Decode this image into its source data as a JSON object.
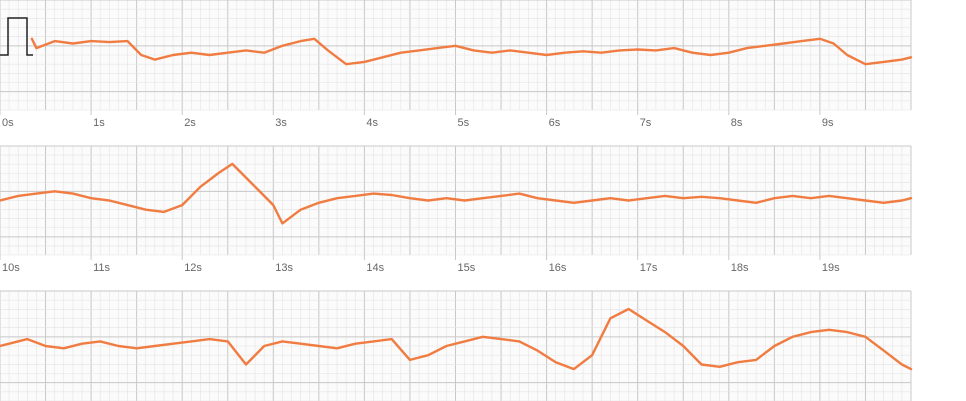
{
  "colors": {
    "trace": "#f07c42",
    "grid_minor": "#e4e4e4",
    "grid_major": "#c8c8c8",
    "axis_band": "#f7f7f7",
    "calibration": "#222222",
    "tick_text": "#666666"
  },
  "chart_data": {
    "type": "line",
    "title": "",
    "xlabel": "",
    "ylabel": "",
    "grid": true,
    "seconds_per_strip": 10,
    "strips": [
      {
        "start_s": 0,
        "end_s": 10,
        "tick_labels": [
          "0s",
          "1s",
          "2s",
          "3s",
          "4s",
          "5s",
          "6s",
          "7s",
          "8s",
          "9s"
        ],
        "calibration_pulse": true,
        "x": [
          0.35,
          0.4,
          0.6,
          0.8,
          1.0,
          1.2,
          1.4,
          1.55,
          1.7,
          1.9,
          2.1,
          2.3,
          2.5,
          2.7,
          2.9,
          3.1,
          3.3,
          3.45,
          3.6,
          3.8,
          4.0,
          4.2,
          4.4,
          4.6,
          4.8,
          5.0,
          5.2,
          5.4,
          5.6,
          5.8,
          6.0,
          6.2,
          6.4,
          6.6,
          6.8,
          7.0,
          7.2,
          7.4,
          7.6,
          7.8,
          8.0,
          8.2,
          8.4,
          8.6,
          8.8,
          9.0,
          9.15,
          9.3,
          9.5,
          9.7,
          9.9,
          10.0
        ],
        "y": [
          0.35,
          0.15,
          0.3,
          0.25,
          0.3,
          0.28,
          0.3,
          0.0,
          -0.1,
          0.0,
          0.05,
          0.0,
          0.05,
          0.1,
          0.05,
          0.2,
          0.3,
          0.35,
          0.1,
          -0.2,
          -0.15,
          -0.05,
          0.05,
          0.1,
          0.15,
          0.2,
          0.1,
          0.05,
          0.1,
          0.05,
          0.0,
          0.05,
          0.08,
          0.05,
          0.1,
          0.12,
          0.1,
          0.15,
          0.05,
          0.0,
          0.05,
          0.15,
          0.2,
          0.25,
          0.3,
          0.35,
          0.25,
          0.0,
          -0.2,
          -0.15,
          -0.1,
          -0.05
        ]
      },
      {
        "start_s": 10,
        "end_s": 20,
        "tick_labels": [
          "10s",
          "11s",
          "12s",
          "13s",
          "14s",
          "15s",
          "16s",
          "17s",
          "18s",
          "19s"
        ],
        "calibration_pulse": false,
        "x": [
          10.0,
          10.2,
          10.4,
          10.6,
          10.8,
          11.0,
          11.2,
          11.4,
          11.6,
          11.8,
          12.0,
          12.2,
          12.4,
          12.55,
          12.7,
          12.9,
          13.0,
          13.1,
          13.3,
          13.5,
          13.7,
          13.9,
          14.1,
          14.3,
          14.5,
          14.7,
          14.9,
          15.1,
          15.3,
          15.5,
          15.7,
          15.9,
          16.1,
          16.3,
          16.5,
          16.7,
          16.9,
          17.1,
          17.3,
          17.5,
          17.7,
          17.9,
          18.1,
          18.3,
          18.5,
          18.7,
          18.9,
          19.1,
          19.3,
          19.5,
          19.7,
          19.9,
          20.0
        ],
        "y": [
          0.0,
          0.1,
          0.15,
          0.2,
          0.15,
          0.05,
          0.0,
          -0.1,
          -0.2,
          -0.25,
          -0.1,
          0.3,
          0.6,
          0.8,
          0.5,
          0.1,
          -0.1,
          -0.5,
          -0.2,
          -0.05,
          0.05,
          0.1,
          0.15,
          0.12,
          0.05,
          0.0,
          0.05,
          0.0,
          0.05,
          0.1,
          0.15,
          0.05,
          0.0,
          -0.05,
          0.0,
          0.05,
          0.0,
          0.05,
          0.1,
          0.05,
          0.08,
          0.05,
          0.0,
          -0.05,
          0.05,
          0.1,
          0.05,
          0.1,
          0.05,
          0.0,
          -0.05,
          0.0,
          0.05
        ]
      },
      {
        "start_s": 20,
        "end_s": 30,
        "tick_labels": [],
        "calibration_pulse": false,
        "x": [
          20.0,
          20.1,
          20.3,
          20.5,
          20.7,
          20.9,
          21.1,
          21.3,
          21.5,
          21.7,
          21.9,
          22.1,
          22.3,
          22.5,
          22.7,
          22.9,
          23.1,
          23.3,
          23.5,
          23.7,
          23.9,
          24.1,
          24.3,
          24.5,
          24.7,
          24.9,
          25.1,
          25.3,
          25.5,
          25.7,
          25.9,
          26.1,
          26.3,
          26.5,
          26.7,
          26.9,
          27.1,
          27.3,
          27.5,
          27.7,
          27.9,
          28.1,
          28.3,
          28.5,
          28.7,
          28.9,
          29.1,
          29.3,
          29.5,
          29.7,
          29.9,
          30.0
        ],
        "y": [
          0.0,
          0.05,
          0.15,
          0.0,
          -0.05,
          0.05,
          0.1,
          0.0,
          -0.05,
          0.0,
          0.05,
          0.1,
          0.15,
          0.1,
          -0.4,
          0.0,
          0.1,
          0.05,
          0.0,
          -0.05,
          0.05,
          0.1,
          0.15,
          -0.3,
          -0.2,
          0.0,
          0.1,
          0.2,
          0.15,
          0.1,
          -0.1,
          -0.35,
          -0.5,
          -0.2,
          0.6,
          0.8,
          0.55,
          0.3,
          0.0,
          -0.4,
          -0.45,
          -0.35,
          -0.3,
          0.0,
          0.2,
          0.3,
          0.35,
          0.3,
          0.2,
          -0.1,
          -0.4,
          -0.5
        ]
      }
    ]
  }
}
